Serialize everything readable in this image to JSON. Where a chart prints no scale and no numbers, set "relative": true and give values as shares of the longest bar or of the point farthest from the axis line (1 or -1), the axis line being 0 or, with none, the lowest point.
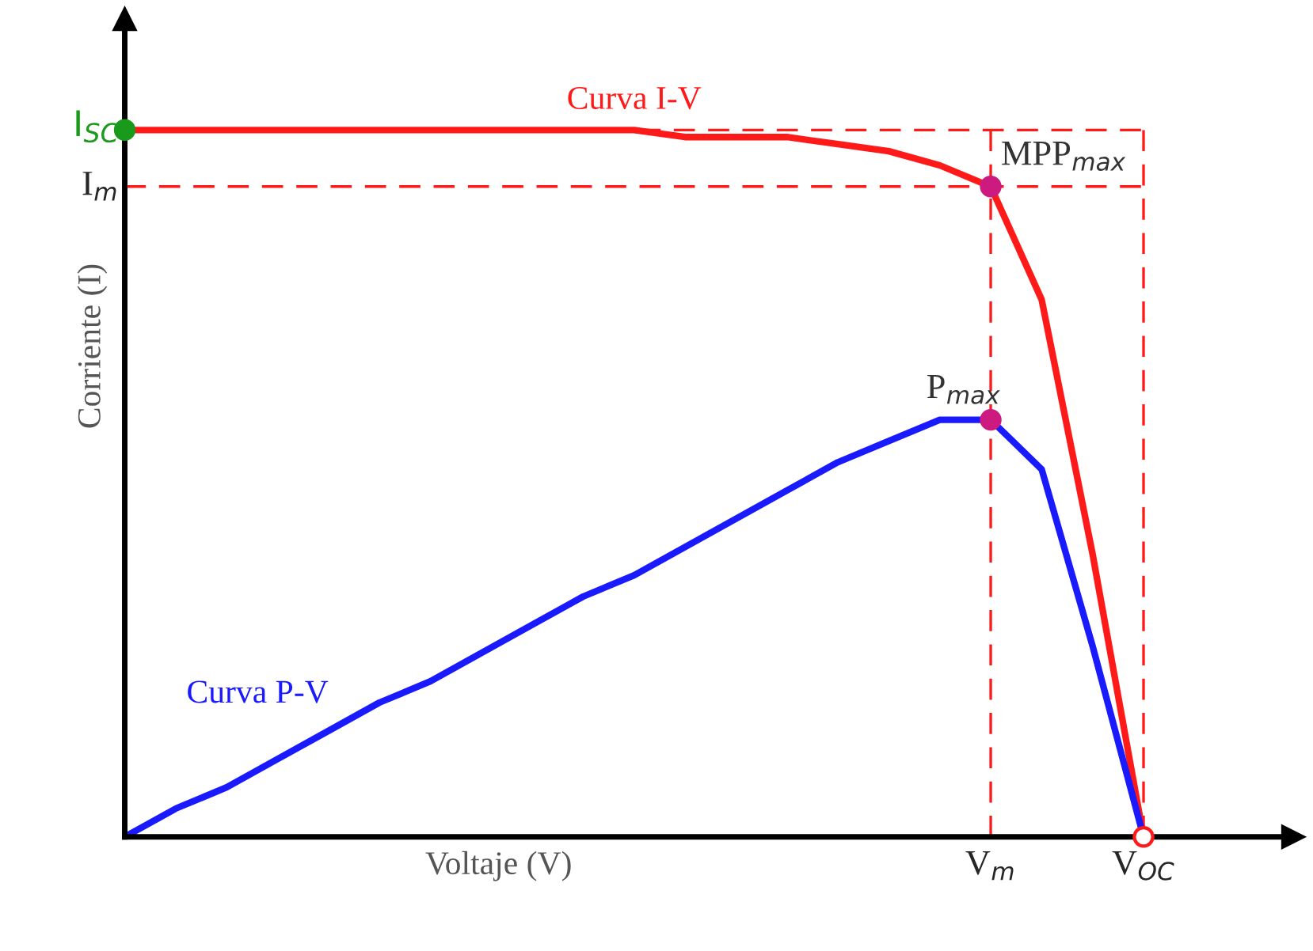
{
  "chart_data": {
    "type": "line",
    "relative": true,
    "xlabel": "Voltaje (V)",
    "ylabel": "Corriente (I)",
    "categories": [
      null,
      null,
      null,
      null,
      null,
      null,
      null,
      null,
      null,
      null,
      null,
      null,
      null,
      null,
      null,
      null,
      null,
      "V$_{m}$",
      null,
      null,
      "V$_{OC}$"
    ],
    "series": [
      {
        "name": "Curva I-V",
        "color": "#ff1a1a",
        "values": [
          1.0,
          1.0,
          1.0,
          1.0,
          1.0,
          1.0,
          1.0,
          1.0,
          1.0,
          1.0,
          1.0,
          0.99,
          0.99,
          0.99,
          0.98,
          0.97,
          0.95,
          0.92,
          0.76,
          0.4,
          0
        ]
      },
      {
        "name": "Curva P-V",
        "color": "#1a1aff",
        "values": [
          0,
          0.04,
          0.07,
          0.11,
          0.15,
          0.19,
          0.22,
          0.26,
          0.3,
          0.34,
          0.37,
          0.41,
          0.45,
          0.49,
          0.53,
          0.56,
          0.59,
          0.59,
          0.52,
          0.27,
          0
        ]
      },
      {
        "name": "I$_{SC}$",
        "type": "scatter",
        "color": "#1a9a1a",
        "values": [
          1.0,
          null,
          null,
          null,
          null,
          null,
          null,
          null,
          null,
          null,
          null,
          null,
          null,
          null,
          null,
          null,
          null,
          null,
          null,
          null,
          null
        ]
      },
      {
        "name": "MPP$_{max}$",
        "type": "scatter",
        "color": "#cc1a80",
        "values": [
          null,
          null,
          null,
          null,
          null,
          null,
          null,
          null,
          null,
          null,
          null,
          null,
          null,
          null,
          null,
          null,
          null,
          0.92,
          null,
          null,
          null
        ]
      },
      {
        "name": "P$_{max}$",
        "type": "scatter",
        "color": "#cc1a80",
        "values": [
          null,
          null,
          null,
          null,
          null,
          null,
          null,
          null,
          null,
          null,
          null,
          null,
          null,
          null,
          null,
          null,
          null,
          0.59,
          null,
          null,
          null
        ]
      },
      {
        "type": "scatter",
        "color": "#ff1a1a",
        "values": [
          null,
          null,
          null,
          null,
          null,
          null,
          null,
          null,
          null,
          null,
          null,
          null,
          null,
          null,
          null,
          null,
          null,
          null,
          null,
          null,
          0
        ]
      }
    ],
    "ref_lines": [
      {
        "axis": "y",
        "value": 1.0,
        "label": null,
        "color": "#ff1a1a",
        "line_style": "dashed"
      },
      {
        "axis": "y",
        "value": 0.92,
        "label": "I$_{m}$",
        "color": "#ff1a1a",
        "line_style": "dashed"
      },
      {
        "axis": "x",
        "value": "V$_{m}$",
        "label": null,
        "color": "#ff1a1a",
        "line_style": "dashed"
      },
      {
        "axis": "x",
        "value": "V$_{OC}$",
        "label": null,
        "color": "#ff1a1a",
        "line_style": "dashed"
      }
    ]
  }
}
